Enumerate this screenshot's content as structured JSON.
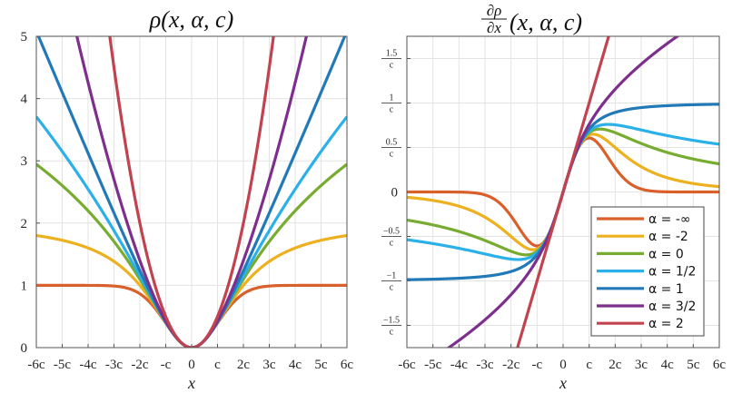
{
  "chart_data": [
    {
      "type": "line",
      "title": "ρ(x, α, c)",
      "xlabel": "x",
      "ylabel": "",
      "function": "rho",
      "xlim": [
        -6,
        6
      ],
      "ylim": [
        0,
        5
      ],
      "grid": true,
      "x_tick_values": [
        -6,
        -5,
        -4,
        -3,
        -2,
        -1,
        0,
        1,
        2,
        3,
        4,
        5,
        6
      ],
      "x_tick_labels": [
        "-6c",
        "-5c",
        "-4c",
        "-3c",
        "-2c",
        "-c",
        "0",
        "c",
        "2c",
        "3c",
        "4c",
        "5c",
        "6c"
      ],
      "y_tick_values": [
        0,
        1,
        2,
        3,
        4,
        5
      ],
      "y_tick_labels": [
        "0",
        "1",
        "2",
        "3",
        "4",
        "5"
      ],
      "series": [
        {
          "name": "α = -∞",
          "alpha": "-inf",
          "color": "#D95F2B"
        },
        {
          "name": "α = -2",
          "alpha": -2,
          "color": "#EDB120"
        },
        {
          "name": "α = 0",
          "alpha": 0,
          "color": "#77AC30"
        },
        {
          "name": "α = 1/2",
          "alpha": 0.5,
          "color": "#2BB0E8"
        },
        {
          "name": "α = 1",
          "alpha": 1,
          "color": "#2279B8"
        },
        {
          "name": "α = 3/2",
          "alpha": 1.5,
          "color": "#7E2F8E"
        },
        {
          "name": "α = 2",
          "alpha": 2,
          "color": "#C0434F"
        }
      ]
    },
    {
      "type": "line",
      "title_num": "∂ρ",
      "title_den": "∂x",
      "title_args": "(x, α, c)",
      "xlabel": "x",
      "ylabel": "",
      "function": "drho_dx",
      "xlim": [
        -6,
        6
      ],
      "ylim": [
        -1.75,
        1.75
      ],
      "grid": true,
      "legend": "bottom-right",
      "x_tick_values": [
        -6,
        -5,
        -4,
        -3,
        -2,
        -1,
        0,
        1,
        2,
        3,
        4,
        5,
        6
      ],
      "x_tick_labels": [
        "-6c",
        "-5c",
        "-4c",
        "-3c",
        "-2c",
        "-c",
        "0",
        "c",
        "2c",
        "3c",
        "4c",
        "5c",
        "6c"
      ],
      "y_tick_values": [
        1.5,
        1,
        0.5,
        0,
        -0.5,
        -1,
        -1.5
      ],
      "y_tick_labels": [
        "1.5",
        "1",
        "0.5",
        "0",
        "−0.5",
        "−1",
        "−1.5"
      ],
      "y_tick_denominator": "c",
      "series": [
        {
          "name": "α = -∞",
          "alpha": "-inf",
          "color": "#D95F2B"
        },
        {
          "name": "α = -2",
          "alpha": -2,
          "color": "#EDB120"
        },
        {
          "name": "α = 0",
          "alpha": 0,
          "color": "#77AC30"
        },
        {
          "name": "α = 1/2",
          "alpha": 0.5,
          "color": "#2BB0E8"
        },
        {
          "name": "α = 1",
          "alpha": 1,
          "color": "#2279B8"
        },
        {
          "name": "α = 3/2",
          "alpha": 1.5,
          "color": "#7E2F8E"
        },
        {
          "name": "α = 2",
          "alpha": 2,
          "color": "#C0434F"
        }
      ]
    }
  ]
}
